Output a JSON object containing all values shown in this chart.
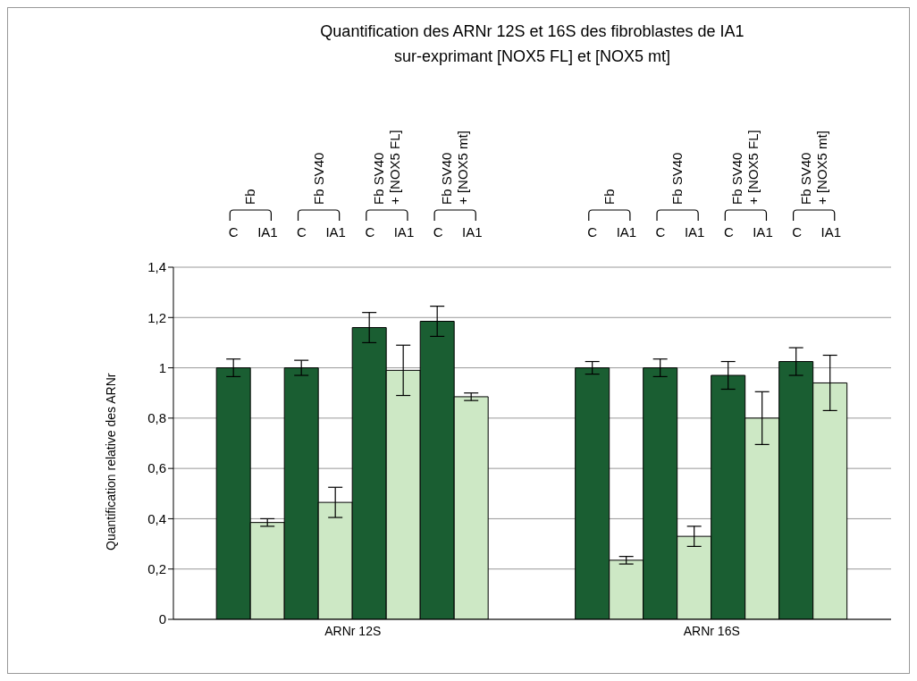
{
  "chart_data": {
    "type": "bar",
    "title": "Quantification des ARNr 12S et 16S des  fibroblastes de IA1\nsur-exprimant [NOX5 FL] et [NOX5 mt]",
    "ylabel": "Quantification relative des ARNr",
    "categories": [
      "ARNr 12S",
      "ARNr 16S"
    ],
    "series": [
      {
        "name": "C",
        "color": "#1a5e32",
        "values": [
          1.0,
          1.0
        ],
        "errors": [
          0.035,
          0.025
        ]
      },
      {
        "name": "IA1",
        "color": "#cde8c5",
        "values": [
          0.385,
          0.235
        ],
        "errors": [
          0.015,
          0.015
        ]
      },
      {
        "name": "C",
        "color": "#1a5e32",
        "values": [
          1.0,
          1.0
        ],
        "errors": [
          0.03,
          0.035
        ]
      },
      {
        "name": "IA1",
        "color": "#cde8c5",
        "values": [
          0.465,
          0.33
        ],
        "errors": [
          0.06,
          0.04
        ]
      },
      {
        "name": "C",
        "color": "#1a5e32",
        "values": [
          1.16,
          0.97
        ],
        "errors": [
          0.06,
          0.055
        ]
      },
      {
        "name": "IA1",
        "color": "#cde8c5",
        "values": [
          0.99,
          0.8
        ],
        "errors": [
          0.1,
          0.105
        ]
      },
      {
        "name": "C",
        "color": "#1a5e32",
        "values": [
          1.185,
          1.025
        ],
        "errors": [
          0.06,
          0.055
        ]
      },
      {
        "name": "IA1",
        "color": "#cde8c5",
        "values": [
          0.885,
          0.94
        ],
        "errors": [
          0.015,
          0.11
        ]
      }
    ],
    "annotations": [
      "Fb",
      "Fb SV40",
      "Fb SV40\n+ [NOX5 FL]",
      "Fb SV40\n+ [NOX5 mt]",
      "Fb",
      "Fb SV40",
      "Fb SV40\n+ [NOX5 FL]",
      "Fb SV40\n+ [NOX5 mt]"
    ],
    "ylim": [
      0,
      1.4
    ],
    "yticks": [
      0,
      {
        "value": 0.2,
        "label": "0,2"
      },
      {
        "value": 0.4,
        "label": "0,4"
      },
      {
        "value": 0.6,
        "label": "0,6"
      },
      {
        "value": 0.8,
        "label": "0,8"
      },
      1,
      {
        "value": 1.2,
        "label": "1,2"
      },
      {
        "value": 1.4,
        "label": "1,4"
      }
    ],
    "grid": "y",
    "legend": "top"
  }
}
